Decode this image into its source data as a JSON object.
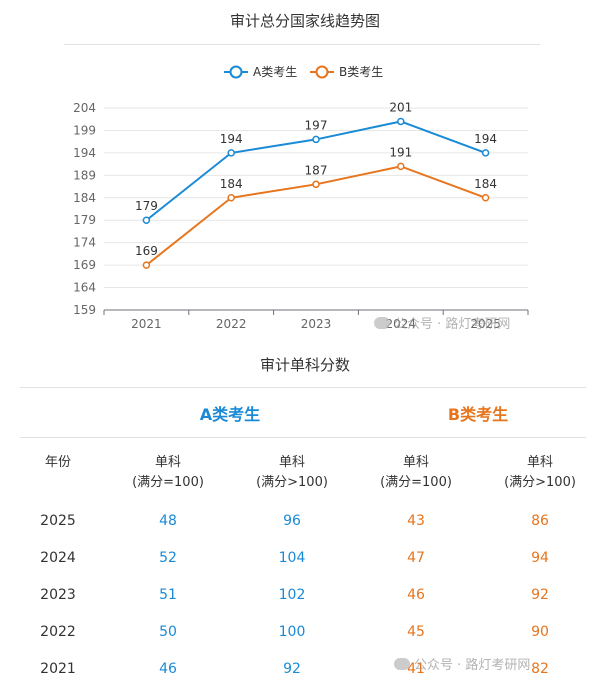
{
  "chart_title": "审计总分国家线趋势图",
  "chart_data": {
    "type": "line",
    "categories": [
      "2021",
      "2022",
      "2023",
      "2024",
      "2025"
    ],
    "series": [
      {
        "name": "A类考生",
        "values": [
          179,
          194,
          197,
          201,
          194
        ],
        "color": "#1a8ad6"
      },
      {
        "name": "B类考生",
        "values": [
          169,
          184,
          187,
          191,
          184
        ],
        "color": "#e7751d"
      }
    ],
    "yticks": [
      159,
      164,
      169,
      174,
      179,
      184,
      189,
      194,
      199,
      204
    ],
    "ylim": [
      159,
      204
    ],
    "legend_position": "top-center",
    "grid": true
  },
  "table_title": "审计单科分数",
  "table": {
    "group_a": "A类考生",
    "group_b": "B类考生",
    "year_header": "年份",
    "col_headers": [
      [
        "单科",
        "(满分=100)"
      ],
      [
        "单科",
        "(满分>100)"
      ],
      [
        "单科",
        "(满分=100)"
      ],
      [
        "单科",
        "(满分>100)"
      ]
    ],
    "rows": [
      {
        "year": "2025",
        "a1": "48",
        "a2": "96",
        "b1": "43",
        "b2": "86"
      },
      {
        "year": "2024",
        "a1": "52",
        "a2": "104",
        "b1": "47",
        "b2": "94"
      },
      {
        "year": "2023",
        "a1": "51",
        "a2": "102",
        "b1": "46",
        "b2": "92"
      },
      {
        "year": "2022",
        "a1": "50",
        "a2": "100",
        "b1": "45",
        "b2": "90"
      },
      {
        "year": "2021",
        "a1": "46",
        "a2": "92",
        "b1": "41",
        "b2": "82"
      }
    ]
  },
  "watermark": "公众号 · 路灯考研网"
}
